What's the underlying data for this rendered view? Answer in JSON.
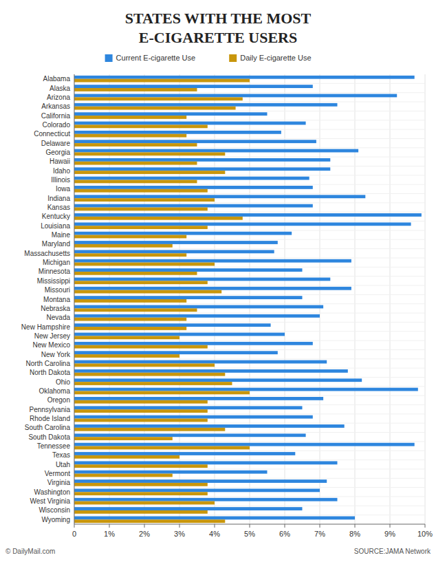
{
  "chart_data": {
    "type": "bar",
    "orientation": "horizontal",
    "title": "STATES WITH THE MOST",
    "subtitle": "E-CIGARETTE USERS",
    "annotations": [
      "© DailyMail.com",
      "SOURCE:JAMA Network"
    ],
    "categories": [
      "Alabama",
      "Alaska",
      "Arizona",
      "Arkansas",
      "California",
      "Colorado",
      "Connecticut",
      "Delaware",
      "Georgia",
      "Hawaii",
      "Idaho",
      "Illinois",
      "Iowa",
      "Indiana",
      "Kansas",
      "Kentucky",
      "Louisiana",
      "Maine",
      "Maryland",
      "Massachusetts",
      "Michigan",
      "Minnesota",
      "Mississippi",
      "Missouri",
      "Montana",
      "Nebraska",
      "Nevada",
      "New Hampshire",
      "New Jersey",
      "New Mexico",
      "New York",
      "North Carolina",
      "North Dakota",
      "Ohio",
      "Oklahoma",
      "Oregon",
      "Pennsylvania",
      "Rhode Island",
      "South Carolina",
      "South Dakota",
      "Tennessee",
      "Texas",
      "Utah",
      "Vermont",
      "Virginia",
      "Washington",
      "West Virginia",
      "Wisconsin",
      "Wyoming"
    ],
    "series": [
      {
        "name": "Current E-cigarette Use",
        "color": "#2e86de",
        "values": [
          9.7,
          6.8,
          9.2,
          7.5,
          5.5,
          6.6,
          5.9,
          6.9,
          8.1,
          7.3,
          7.3,
          6.7,
          6.8,
          8.3,
          6.8,
          9.9,
          9.6,
          6.2,
          5.8,
          5.7,
          7.9,
          6.5,
          7.3,
          7.9,
          6.5,
          7.1,
          7.0,
          5.6,
          6.0,
          6.8,
          5.8,
          7.2,
          7.8,
          8.2,
          9.8,
          7.1,
          6.5,
          6.8,
          7.7,
          6.6,
          9.7,
          6.3,
          7.5,
          5.5,
          7.2,
          7.0,
          7.5,
          6.5,
          8.0
        ]
      },
      {
        "name": "Daily E-cigarette Use",
        "color": "#c8960c",
        "values": [
          5.0,
          3.5,
          4.8,
          4.6,
          3.2,
          3.8,
          3.2,
          3.5,
          4.3,
          3.5,
          4.3,
          3.5,
          3.8,
          4.0,
          3.8,
          4.8,
          3.8,
          3.2,
          2.8,
          3.2,
          4.0,
          3.5,
          3.8,
          4.2,
          3.2,
          3.5,
          3.2,
          3.2,
          3.0,
          3.8,
          3.0,
          4.0,
          4.3,
          4.5,
          5.0,
          3.8,
          3.8,
          3.8,
          4.3,
          2.8,
          5.0,
          3.0,
          3.8,
          2.8,
          3.8,
          3.8,
          4.0,
          3.8,
          4.3
        ]
      }
    ],
    "xlim": [
      0,
      10
    ],
    "xticks": [
      0,
      {
        "value": 1,
        "label": "1%"
      },
      {
        "value": 2,
        "label": "2%"
      },
      {
        "value": 3,
        "label": "3%"
      },
      {
        "value": 4,
        "label": "4%"
      },
      {
        "value": 5,
        "label": "5%"
      },
      {
        "value": 6,
        "label": "6%"
      },
      {
        "value": 7,
        "label": "7%"
      },
      {
        "value": 8,
        "label": "8%"
      },
      {
        "value": 9,
        "label": "9%"
      },
      {
        "value": 10,
        "label": "10%"
      }
    ],
    "grid": true,
    "legend": "top"
  }
}
